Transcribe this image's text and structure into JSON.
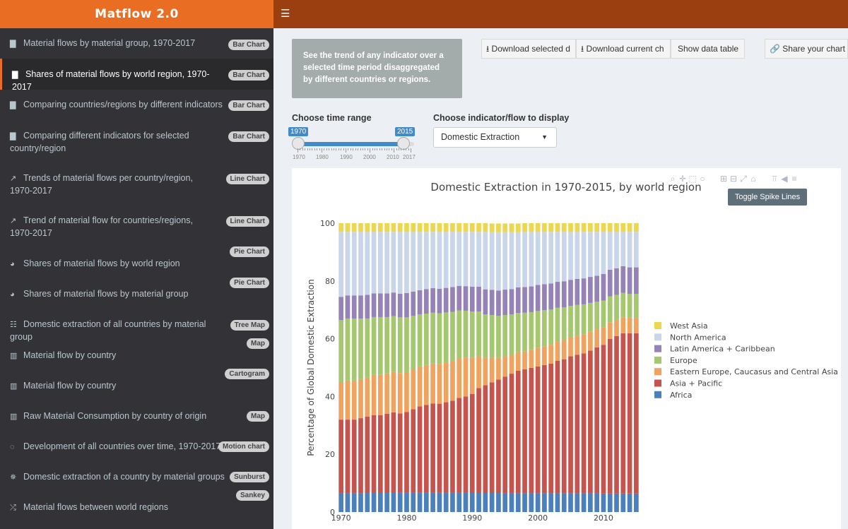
{
  "app": {
    "title": "Matflow 2.0"
  },
  "header": {
    "menu_icon": "hamburger-icon"
  },
  "sidebar": {
    "items": [
      {
        "label": "Material flows by material group, 1970-2017",
        "badge": "Bar Chart",
        "icon": "bar-chart-icon"
      },
      {
        "label": "Shares of material flows by world region, 1970-2017",
        "badge": "Bar Chart",
        "icon": "bar-chart-icon",
        "active": true
      },
      {
        "label": "Comparing countries/regions by different indicators",
        "badge": "Bar Chart",
        "icon": "bar-chart-icon"
      },
      {
        "label": "Comparing different indicators for selected country/region",
        "badge": "Bar Chart",
        "icon": "bar-chart-icon"
      },
      {
        "label": "Trends of material flows per country/region, 1970-2017",
        "badge": "Line Chart",
        "icon": "line-chart-icon"
      },
      {
        "label": "Trend of material flow for countries/regions, 1970-2017",
        "badge": "Line Chart",
        "icon": "line-chart-icon"
      },
      {
        "label": "Shares of material flows by world region",
        "badge": "Pie Chart",
        "icon": "pie-chart-icon"
      },
      {
        "label": "Shares of material flows by material group",
        "badge": "Pie Chart",
        "icon": "pie-chart-icon"
      },
      {
        "label": "Domestic extraction of all countries by material group",
        "badge": "Tree Map",
        "icon": "grid-icon"
      },
      {
        "label": "Material flow by country",
        "badge": "Map",
        "icon": "map-icon"
      },
      {
        "label": "Material flow by country",
        "badge": "Cartogram",
        "icon": "map-icon"
      },
      {
        "label": "Raw Material Consumption by country of origin",
        "badge": "Map",
        "icon": "map-icon"
      },
      {
        "label": "Development of all countries over time, 1970-2017",
        "badge": "Motion chart",
        "icon": "spinner-icon"
      },
      {
        "label": "Domestic extraction of a country by material groups",
        "badge": "Sunburst",
        "icon": "sunburst-icon"
      },
      {
        "label": "Material flows between world regions",
        "badge": "Sankey",
        "icon": "random-icon"
      }
    ]
  },
  "main": {
    "info_text": "See the trend of any indicator over a selected time period disaggregated by different countries or regions.",
    "buttons": {
      "download_selected": "Download selected d",
      "download_current": "Download current ch",
      "show_table": "Show data table",
      "share": "Share your chart"
    },
    "time_range": {
      "label": "Choose time range",
      "from": "1970",
      "to": "2015",
      "min_value": 1970,
      "max_value": 2017,
      "tick_labels": [
        "1970",
        "1980",
        "1990",
        "2000",
        "2010",
        "2017"
      ]
    },
    "indicator": {
      "label": "Choose indicator/flow to display",
      "value": "Domestic Extraction"
    },
    "tooltip": "Toggle Spike Lines",
    "modebar_icons": [
      "zoom-icon",
      "pan-icon",
      "box-select-icon",
      "lasso-icon",
      "zoom-in-icon",
      "zoom-out-icon",
      "autoscale-icon",
      "reset-axes-icon",
      "spike-lines-icon",
      "hover-closest-icon",
      "hover-compare-icon"
    ]
  },
  "chart_data": {
    "type": "bar",
    "stacked": true,
    "title": "Domestic Extraction in 1970-2015, by world region",
    "xlabel": "",
    "ylabel": "Percentage of Global Domestic Extraction",
    "ylim": [
      0,
      100
    ],
    "x_ticks": [
      "1970",
      "1980",
      "1990",
      "2000",
      "2010"
    ],
    "y_ticks": [
      "0",
      "20",
      "40",
      "60",
      "80",
      "100"
    ],
    "categories": [
      1970,
      1971,
      1972,
      1973,
      1974,
      1975,
      1976,
      1977,
      1978,
      1979,
      1980,
      1981,
      1982,
      1983,
      1984,
      1985,
      1986,
      1987,
      1988,
      1989,
      1990,
      1991,
      1992,
      1993,
      1994,
      1995,
      1996,
      1997,
      1998,
      1999,
      2000,
      2001,
      2002,
      2003,
      2004,
      2005,
      2006,
      2007,
      2008,
      2009,
      2010,
      2011,
      2012,
      2013,
      2014,
      2015
    ],
    "series": [
      {
        "name": "Africa",
        "color": "#4c80bd",
        "values": [
          6.5,
          6.5,
          6.5,
          6.5,
          6.6,
          6.6,
          6.6,
          6.6,
          6.6,
          6.7,
          6.7,
          6.7,
          6.7,
          6.7,
          6.7,
          6.7,
          6.7,
          6.7,
          6.7,
          6.7,
          6.6,
          6.6,
          6.6,
          6.6,
          6.6,
          6.5,
          6.5,
          6.5,
          6.5,
          6.5,
          6.5,
          6.5,
          6.5,
          6.5,
          6.5,
          6.5,
          6.5,
          6.5,
          6.5,
          6.5,
          6.4,
          6.4,
          6.4,
          6.4,
          6.4,
          6.4
        ]
      },
      {
        "name": "Asia + Pacific",
        "color": "#c6544e",
        "values": [
          25.5,
          25.5,
          25.5,
          26,
          26.4,
          26.9,
          26.9,
          27.4,
          27.9,
          27.4,
          27.9,
          28.9,
          29.9,
          30.4,
          30.9,
          30.8,
          31.3,
          31.8,
          32.8,
          33.3,
          34.3,
          36.3,
          37.3,
          38.3,
          39.3,
          40.4,
          41.4,
          42.4,
          42.9,
          43.4,
          43.9,
          44.4,
          44.9,
          45.9,
          46.4,
          47.4,
          47.9,
          48.4,
          49.4,
          50.5,
          51.5,
          53.5,
          54.5,
          55.5,
          55.5,
          55.5
        ]
      },
      {
        "name": "Eastern Europe, Caucasus and Central Asia",
        "color": "#f0a35e",
        "values": [
          13,
          13.5,
          13.5,
          13.5,
          13.5,
          14,
          14,
          14,
          14,
          14,
          13.8,
          13.8,
          13.8,
          13.8,
          13.8,
          13.8,
          13.8,
          13.8,
          13.8,
          13.5,
          12.5,
          11,
          9.5,
          8.5,
          7.5,
          7,
          6.5,
          6.5,
          6.3,
          6.3,
          6.5,
          6.5,
          6.5,
          6.5,
          6.5,
          6.5,
          6.5,
          6.5,
          6.5,
          6.3,
          6,
          5.8,
          5.5,
          5.5,
          5.3,
          5.3
        ]
      },
      {
        "name": "Europe",
        "color": "#a5c76f",
        "values": [
          21.5,
          21.5,
          21.5,
          21,
          20.5,
          20,
          20,
          19.5,
          19.3,
          19.3,
          19,
          18.5,
          18,
          17.8,
          17.6,
          17.5,
          17.3,
          17,
          16.5,
          16.2,
          16,
          15.5,
          15,
          14.8,
          14.5,
          14.3,
          14,
          13.5,
          13.3,
          13,
          12.7,
          12.5,
          12.2,
          11.8,
          11.5,
          11,
          10.8,
          10.5,
          10,
          9.5,
          9.3,
          9,
          8.8,
          8.5,
          8.3,
          8.3
        ]
      },
      {
        "name": "Latin America + Caribbean",
        "color": "#9583b8",
        "values": [
          8,
          8,
          8,
          8,
          8.2,
          8.2,
          8.2,
          8.2,
          8.2,
          8.2,
          8.4,
          8.4,
          8.4,
          8.5,
          8.5,
          8.5,
          8.5,
          8.6,
          8.5,
          8.5,
          8.6,
          8.6,
          8.7,
          8.7,
          8.8,
          8.8,
          8.8,
          8.9,
          8.9,
          8.9,
          9,
          9,
          9,
          9,
          9,
          9,
          9,
          9,
          9,
          9,
          9.2,
          9.2,
          9.2,
          9.2,
          9.2,
          9.2
        ]
      },
      {
        "name": "North America",
        "color": "#c9d5e8",
        "values": [
          22.5,
          22,
          22,
          22,
          21.8,
          21.3,
          21.3,
          21.3,
          21,
          21.4,
          21.2,
          20.7,
          20.2,
          19.8,
          19.5,
          19.7,
          19.4,
          19.1,
          18.7,
          18.8,
          19,
          19,
          19.9,
          20,
          20.2,
          19.9,
          19.7,
          19.1,
          19.1,
          18.9,
          18.4,
          18.1,
          17.9,
          17.3,
          17.1,
          16.6,
          16.3,
          16.1,
          15.6,
          15.2,
          14.6,
          13.1,
          12.6,
          11.9,
          12.3,
          12.3
        ]
      },
      {
        "name": "West Asia",
        "color": "#ecd74e",
        "values": [
          3,
          3,
          3,
          3,
          3,
          3,
          3,
          3,
          3,
          3,
          3,
          3,
          3,
          3,
          3,
          3,
          3,
          3,
          3,
          3,
          3,
          3,
          3,
          3,
          3,
          3,
          3,
          3,
          3,
          3,
          3,
          3,
          3,
          3,
          3,
          3,
          3,
          3,
          3,
          3,
          3,
          3,
          3,
          3,
          3,
          3
        ]
      }
    ],
    "legend_position": "right",
    "legend_order": [
      "West Asia",
      "North America",
      "Latin America + Caribbean",
      "Europe",
      "Eastern Europe, Caucasus and Central Asia",
      "Asia + Pacific",
      "Africa"
    ]
  }
}
